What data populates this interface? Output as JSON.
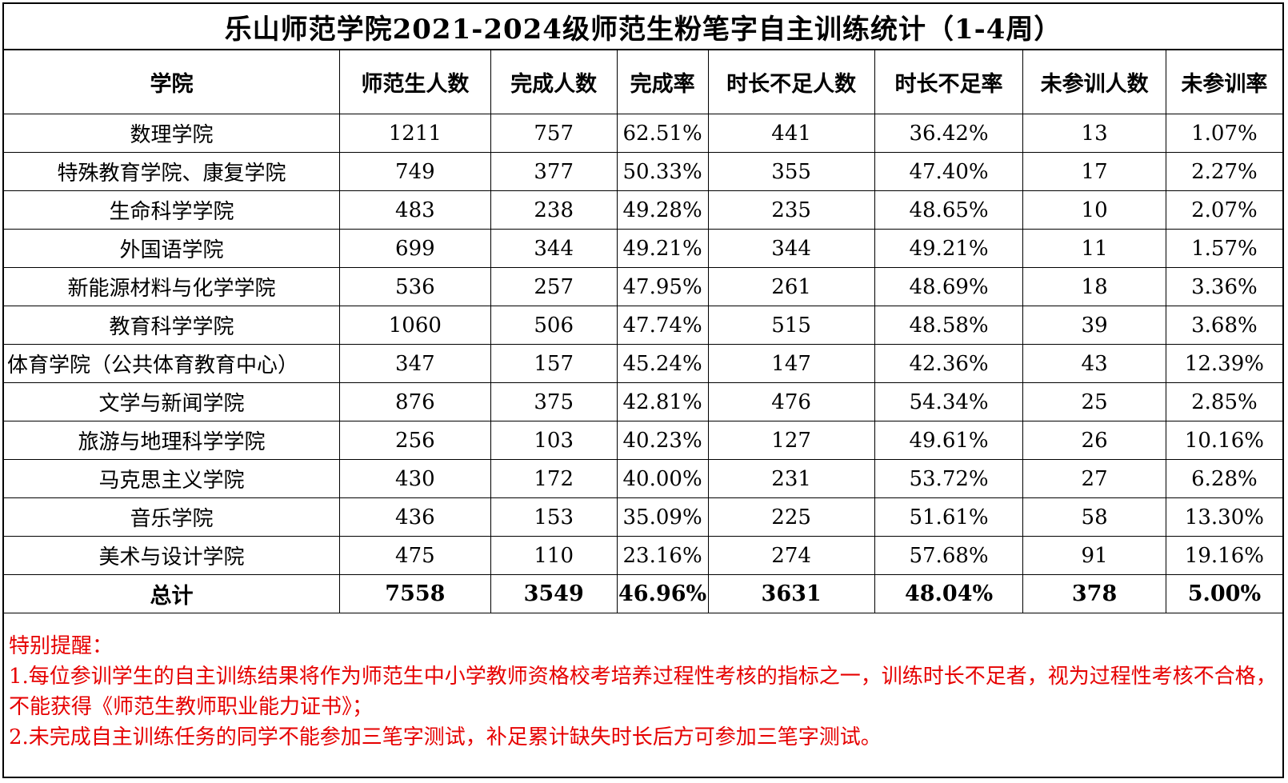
{
  "title": "乐山师范学院2021-2024级师范生粉笔字自主训练统计（1-4周）",
  "table": {
    "headers": [
      "学院",
      "师范生人数",
      "完成人数",
      "完成率",
      "时长不足人数",
      "时长不足率",
      "未参训人数",
      "未参训率"
    ],
    "rows": [
      [
        "数理学院",
        "1211",
        "757",
        "62.51%",
        "441",
        "36.42%",
        "13",
        "1.07%"
      ],
      [
        "特殊教育学院、康复学院",
        "749",
        "377",
        "50.33%",
        "355",
        "47.40%",
        "17",
        "2.27%"
      ],
      [
        "生命科学学院",
        "483",
        "238",
        "49.28%",
        "235",
        "48.65%",
        "10",
        "2.07%"
      ],
      [
        "外国语学院",
        "699",
        "344",
        "49.21%",
        "344",
        "49.21%",
        "11",
        "1.57%"
      ],
      [
        "新能源材料与化学学院",
        "536",
        "257",
        "47.95%",
        "261",
        "48.69%",
        "18",
        "3.36%"
      ],
      [
        "教育科学学院",
        "1060",
        "506",
        "47.74%",
        "515",
        "48.58%",
        "39",
        "3.68%"
      ],
      [
        "体育学院（公共体育教育中心）",
        "347",
        "157",
        "45.24%",
        "147",
        "42.36%",
        "43",
        "12.39%"
      ],
      [
        "文学与新闻学院",
        "876",
        "375",
        "42.81%",
        "476",
        "54.34%",
        "25",
        "2.85%"
      ],
      [
        "旅游与地理科学学院",
        "256",
        "103",
        "40.23%",
        "127",
        "49.61%",
        "26",
        "10.16%"
      ],
      [
        "马克思主义学院",
        "430",
        "172",
        "40.00%",
        "231",
        "53.72%",
        "27",
        "6.28%"
      ],
      [
        "音乐学院",
        "436",
        "153",
        "35.09%",
        "225",
        "51.61%",
        "58",
        "13.30%"
      ],
      [
        "美术与设计学院",
        "475",
        "110",
        "23.16%",
        "274",
        "57.68%",
        "91",
        "19.16%"
      ]
    ],
    "total": [
      "总计",
      "7558",
      "3549",
      "46.96%",
      "3631",
      "48.04%",
      "378",
      "5.00%"
    ]
  },
  "notes": {
    "heading": "特别提醒：",
    "item1": "1.每位参训学生的自主训练结果将作为师范生中小学教师资格校考培养过程性考核的指标之一，训练时长不足者，视为过程性考核不合格，不能获得《师范生教师职业能力证书》；",
    "item2": "2.未完成自主训练任务的同学不能参加三笔字测试，补足累计缺失时长后方可参加三笔字测试。"
  },
  "colors": {
    "note_text": "#e60000",
    "border": "#000000"
  }
}
